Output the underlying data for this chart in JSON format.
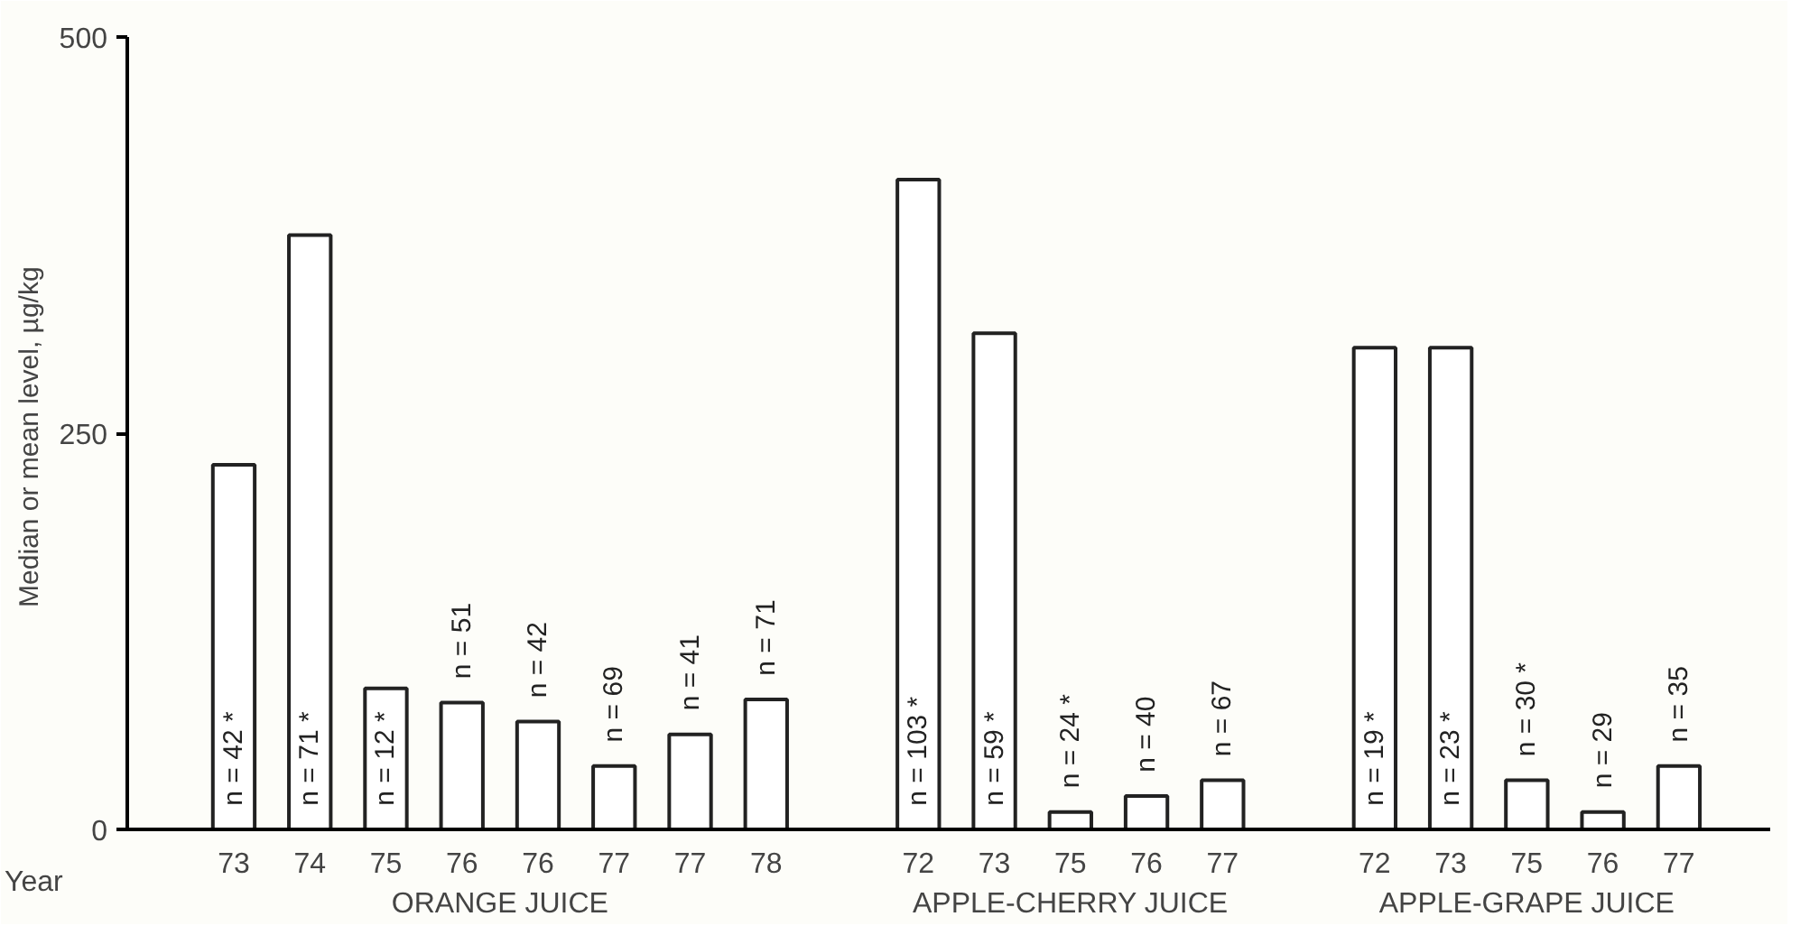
{
  "chart_data": {
    "type": "bar",
    "ylabel": "Median or  mean level, µg/kg",
    "categories": [
      "73",
      "74",
      "75",
      "76",
      "76",
      "77",
      "77",
      "78",
      null,
      "72",
      "73",
      "75",
      "76",
      "77",
      null,
      "72",
      "73",
      "75",
      "76",
      "77"
    ],
    "values": [
      230,
      375,
      89,
      80,
      68,
      40,
      60,
      82,
      null,
      410,
      313,
      11,
      21,
      31,
      null,
      304,
      304,
      31,
      11,
      40
    ],
    "color": "#ffffff",
    "ylim": [
      0,
      500
    ],
    "yticks": [
      0,
      250,
      500
    ],
    "grid": false,
    "annotations": [
      "n = 42 *",
      "n = 71 *",
      "n = 12 *",
      "n = 51",
      "n = 42",
      "n = 69",
      "n = 41",
      "n = 71",
      "n = 103 *",
      "n = 59 *",
      "n = 24 *",
      "n = 40",
      "n = 67",
      "n = 19 *",
      "n = 23 *",
      "n = 30 *",
      "n = 29",
      "n = 35",
      "Year",
      "ORANGE JUICE",
      "APPLE-CHERRY JUICE",
      "APPLE-GRAPE JUICE"
    ]
  }
}
